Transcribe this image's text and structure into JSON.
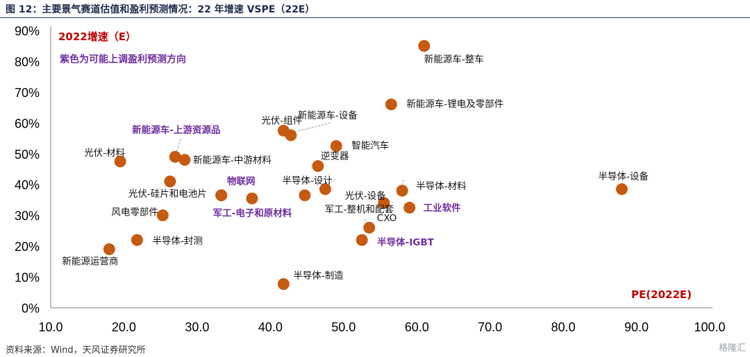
{
  "header": {
    "title": "图 12：主要景气赛道估值和盈利预测情况：22 年增速 VSPE（22E）"
  },
  "footer": {
    "source": "资料来源：Wind，天风证券研究所",
    "watermark": "格隆汇"
  },
  "chart_data": {
    "type": "scatter",
    "xlim": [
      10,
      100
    ],
    "ylim": [
      0,
      0.9
    ],
    "x_ticks": [
      "10.0",
      "20.0",
      "30.0",
      "40.0",
      "50.0",
      "60.0",
      "70.0",
      "80.0",
      "90.0",
      "100.0"
    ],
    "y_ticks": [
      "0%",
      "10%",
      "20%",
      "30%",
      "40%",
      "50%",
      "60%",
      "70%",
      "80%",
      "90%"
    ],
    "grid": false,
    "marker_color": "#c55a11",
    "label_color": "#111111",
    "highlight_color": "#7030a0",
    "annotations": {
      "y_title": "2022增速（E）",
      "y_title_color": "#c00000",
      "note": "紫色为可能上调盈利预测方向",
      "note_color": "#7030a0",
      "x_title": "PE(2022E)",
      "x_title_color": "#c00000"
    },
    "points": [
      {
        "name": "新能源车-整车",
        "x": 61.0,
        "y": 0.85
      },
      {
        "name": "新能源车-锂电及零部件",
        "x": 56.5,
        "y": 0.66
      },
      {
        "name": "光伏-组件",
        "x": 41.8,
        "y": 0.575
      },
      {
        "name": "新能源车-设备",
        "x": 42.8,
        "y": 0.56
      },
      {
        "name": "智能汽车",
        "x": 49.0,
        "y": 0.525
      },
      {
        "name": "新能源车-上游资源品",
        "x": 27.0,
        "y": 0.49,
        "highlight": true
      },
      {
        "name": "新能源车-中游材料",
        "x": 28.3,
        "y": 0.48
      },
      {
        "name": "光伏-材料",
        "x": 19.5,
        "y": 0.475
      },
      {
        "name": "逆变器",
        "x": 46.5,
        "y": 0.46
      },
      {
        "name": "半导体-设备",
        "x": 88.0,
        "y": 0.385
      },
      {
        "name": "光伏-硅片和电池片",
        "x": 26.3,
        "y": 0.41
      },
      {
        "name": "半导体-设计",
        "x": 47.5,
        "y": 0.385
      },
      {
        "name": "光伏-设备",
        "x": 55.5,
        "y": 0.34
      },
      {
        "name": "半导体-材料",
        "x": 58.0,
        "y": 0.38
      },
      {
        "name": "物联网",
        "x": 37.5,
        "y": 0.355,
        "highlight": true
      },
      {
        "name": "",
        "x": 33.3,
        "y": 0.365
      },
      {
        "name": "",
        "x": 44.7,
        "y": 0.365
      },
      {
        "name": "工业软件",
        "x": 59.0,
        "y": 0.325,
        "highlight": true
      },
      {
        "name": "军工-整机和配套",
        "x": 53.5,
        "y": 0.26
      },
      {
        "name": "CXO",
        "x": 55.5,
        "y": 0.34
      },
      {
        "name": "军工-电子和原材料",
        "x": 33.3,
        "y": 0.365,
        "highlight": true
      },
      {
        "name": "风电零部件",
        "x": 25.3,
        "y": 0.3
      },
      {
        "name": "半导体-IGBT",
        "x": 52.5,
        "y": 0.22,
        "highlight": true
      },
      {
        "name": "半导体-封测",
        "x": 21.8,
        "y": 0.22
      },
      {
        "name": "新能源运营商",
        "x": 18.0,
        "y": 0.19
      },
      {
        "name": "半导体-制造",
        "x": 41.8,
        "y": 0.077
      }
    ]
  }
}
